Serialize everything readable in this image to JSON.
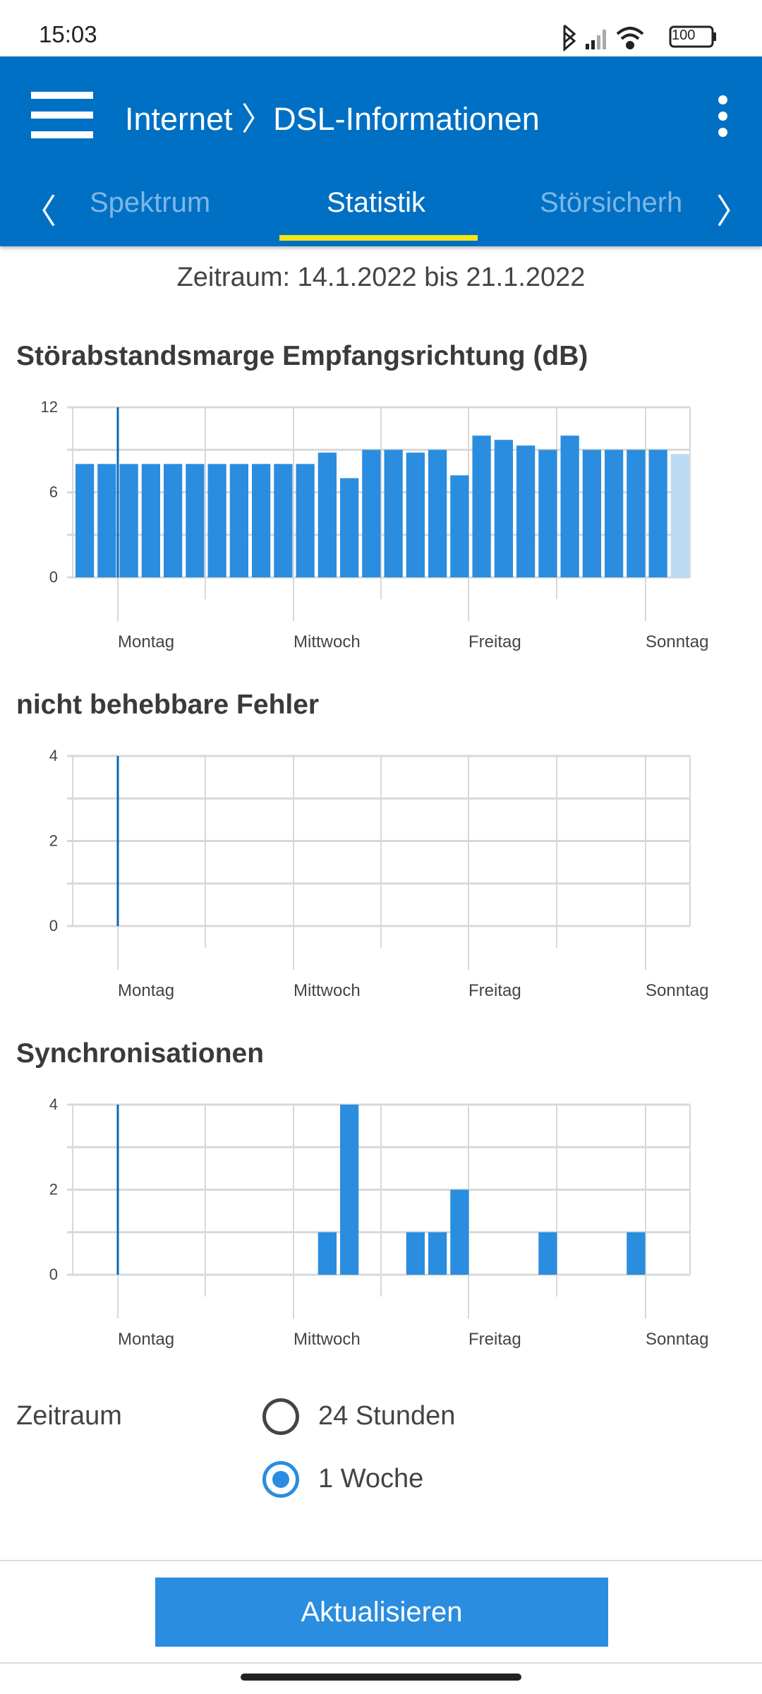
{
  "status_bar": {
    "time": "15:03",
    "battery": "100",
    "icons": [
      "bluetooth-icon",
      "signal-icon",
      "wifi-icon",
      "battery-icon"
    ]
  },
  "header": {
    "title": "Internet 〉DSL-Informationen",
    "menu_icon": "hamburger-icon",
    "overflow_icon": "more-vert-icon"
  },
  "tabs": [
    {
      "label": "Spektrum",
      "active": false
    },
    {
      "label": "Statistik",
      "active": true
    },
    {
      "label": "Störsicherh",
      "active": false
    }
  ],
  "range_text": "Zeitraum: 14.1.2022 bis 21.1.2022",
  "colors": {
    "primary": "#0070c4",
    "bar": "#2a8ddf",
    "bar_pending": "#bcdaf2",
    "indicator": "#f5e614"
  },
  "chart_data": [
    {
      "type": "bar",
      "title": "Störabstandsmarge Empfangsrichtung (dB)",
      "ylim": [
        0,
        12
      ],
      "yticks": [
        "0",
        "6",
        "12"
      ],
      "xticks": [
        "Montag",
        "Mittwoch",
        "Freitag",
        "Sonntag"
      ],
      "grid": true,
      "values": [
        8,
        8,
        8,
        8,
        8,
        8,
        8,
        8,
        8,
        8,
        8,
        8.8,
        7,
        9,
        9,
        8.8,
        9,
        7.2,
        10,
        9.7,
        9.3,
        9,
        10,
        9,
        9,
        9,
        9,
        8.7
      ],
      "pending_last": true
    },
    {
      "type": "bar",
      "title": "nicht behebbare Fehler",
      "ylim": [
        0,
        4
      ],
      "yticks": [
        "0",
        "2",
        "4"
      ],
      "xticks": [
        "Montag",
        "Mittwoch",
        "Freitag",
        "Sonntag"
      ],
      "grid": true,
      "values": [
        0,
        0,
        0,
        0,
        0,
        0,
        0,
        0,
        0,
        0,
        0,
        0,
        0,
        0,
        0,
        0,
        0,
        0,
        0,
        0,
        0,
        0,
        0,
        0,
        0,
        0,
        0,
        0
      ],
      "pending_last": false
    },
    {
      "type": "bar",
      "title": "Synchronisationen",
      "ylim": [
        0,
        4
      ],
      "yticks": [
        "0",
        "2",
        "4"
      ],
      "xticks": [
        "Montag",
        "Mittwoch",
        "Freitag",
        "Sonntag"
      ],
      "grid": true,
      "values": [
        0,
        0,
        0,
        0,
        0,
        0,
        0,
        0,
        0,
        0,
        0,
        1,
        4,
        0,
        0,
        1,
        1,
        2,
        0,
        0,
        0,
        1,
        0,
        0,
        0,
        1,
        0,
        0
      ],
      "pending_last": false
    }
  ],
  "period": {
    "label": "Zeitraum",
    "options": [
      {
        "label": "24 Stunden",
        "selected": false
      },
      {
        "label": "1 Woche",
        "selected": true
      }
    ]
  },
  "update_button": "Aktualisieren"
}
